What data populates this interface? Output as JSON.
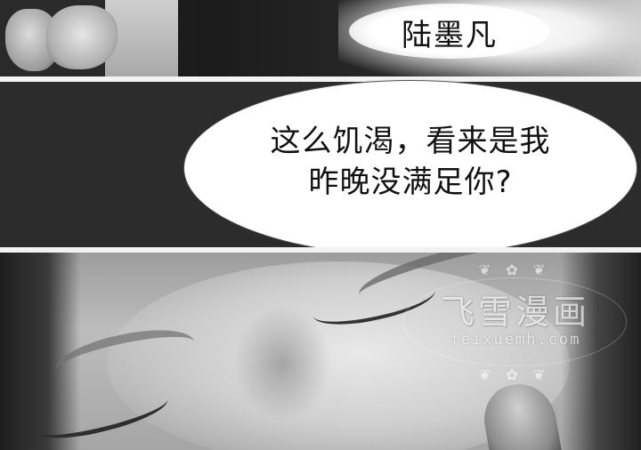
{
  "caption": {
    "speaker_name": "陆墨凡"
  },
  "speech_bubble": {
    "line1": "这么饥渴，看来是我",
    "line2": "昨晚没满足你?"
  },
  "watermark": {
    "title": "飞雪漫画",
    "url": "feixuemh.com",
    "ornament": "❦ ✿ ❦"
  },
  "icons": {
    "watermark_ornament": "floral-ornament-icon"
  },
  "colors": {
    "bubble_fill": "#ffffff",
    "bubble_border": "#555555",
    "panel_dark": "#2c2c2c",
    "text": "#111111"
  }
}
